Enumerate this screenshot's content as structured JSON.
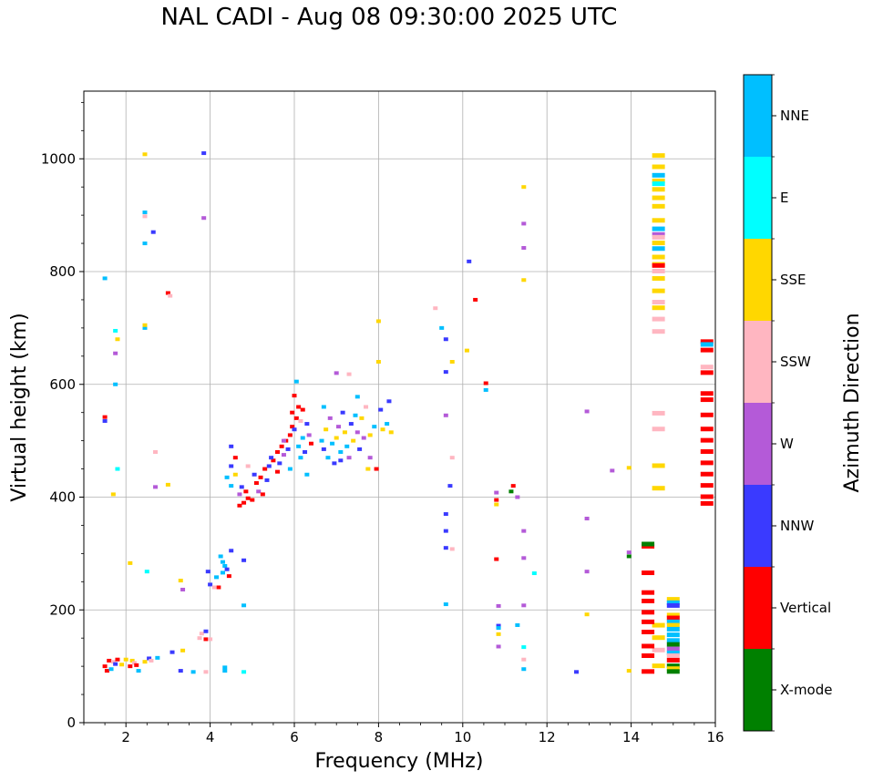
{
  "chart_data": {
    "type": "scatter",
    "title": "NAL CADI - Aug 08 09:30:00 2025 UTC",
    "xlabel": "Frequency (MHz)",
    "ylabel": "Virtual height (km)",
    "xlim": [
      1,
      16
    ],
    "ylim": [
      0,
      1120
    ],
    "xticks": [
      2,
      4,
      6,
      8,
      10,
      12,
      14,
      16
    ],
    "yticks": [
      0,
      200,
      400,
      600,
      800,
      1000
    ],
    "grid": true,
    "colorbar": {
      "label": "Azimuth Direction",
      "categories": [
        {
          "name": "X-mode",
          "color": "#008000"
        },
        {
          "name": "Vertical",
          "color": "#ff0000"
        },
        {
          "name": "NNW",
          "color": "#3a3aff"
        },
        {
          "name": "W",
          "color": "#b45ad8"
        },
        {
          "name": "SSW",
          "color": "#ffb6c1"
        },
        {
          "name": "SSE",
          "color": "#ffd700"
        },
        {
          "name": "E",
          "color": "#00ffff"
        },
        {
          "name": "NNE",
          "color": "#00bfff"
        }
      ]
    },
    "points": [
      [
        "Vertical",
        1.5,
        100
      ],
      [
        "Vertical",
        1.55,
        92
      ],
      [
        "Vertical",
        1.6,
        110
      ],
      [
        "NNE",
        1.65,
        95
      ],
      [
        "SSW",
        1.7,
        108
      ],
      [
        "NNW",
        1.75,
        104
      ],
      [
        "Vertical",
        1.8,
        112
      ],
      [
        "SSE",
        1.9,
        103
      ],
      [
        "SSE",
        2.0,
        112
      ],
      [
        "Vertical",
        2.1,
        100
      ],
      [
        "SSE",
        2.15,
        110
      ],
      [
        "SSW",
        2.2,
        106
      ],
      [
        "Vertical",
        2.25,
        102
      ],
      [
        "NNE",
        2.3,
        92
      ],
      [
        "SSE",
        2.45,
        108
      ],
      [
        "NNW",
        2.55,
        114
      ],
      [
        "SSW",
        2.6,
        110
      ],
      [
        "NNE",
        2.75,
        115
      ],
      [
        "NNW",
        3.1,
        125
      ],
      [
        "NNW",
        3.3,
        92
      ],
      [
        "SSE",
        3.35,
        128
      ],
      [
        "NNE",
        3.6,
        90
      ],
      [
        "SSW",
        3.75,
        150
      ],
      [
        "SSW",
        3.8,
        158
      ],
      [
        "NNW",
        3.9,
        162
      ],
      [
        "Vertical",
        3.9,
        148
      ],
      [
        "SSW",
        4.0,
        148
      ],
      [
        "SSW",
        3.9,
        90
      ],
      [
        "NNE",
        4.35,
        92
      ],
      [
        "NNE",
        4.35,
        98
      ],
      [
        "E",
        4.8,
        90
      ],
      [
        "NNW",
        4.0,
        245
      ],
      [
        "NNE",
        4.15,
        258
      ],
      [
        "Vertical",
        4.2,
        240
      ],
      [
        "NNE",
        4.3,
        266
      ],
      [
        "NNE",
        4.35,
        278
      ],
      [
        "NNW",
        4.4,
        272
      ],
      [
        "Vertical",
        4.45,
        260
      ],
      [
        "NNE",
        4.25,
        295
      ],
      [
        "NNW",
        4.5,
        305
      ],
      [
        "NNE",
        4.8,
        208
      ],
      [
        "NNW",
        4.8,
        288
      ],
      [
        "SSW",
        4.1,
        240
      ],
      [
        "NNE",
        4.3,
        285
      ],
      [
        "Vertical",
        4.7,
        385
      ],
      [
        "Vertical",
        4.8,
        390
      ],
      [
        "Vertical",
        4.9,
        398
      ],
      [
        "Vertical",
        5.0,
        395
      ],
      [
        "Vertical",
        4.85,
        410
      ],
      [
        "W",
        4.7,
        405
      ],
      [
        "NNW",
        4.75,
        418
      ],
      [
        "Vertical",
        5.1,
        425
      ],
      [
        "Vertical",
        5.2,
        435
      ],
      [
        "NNW",
        5.05,
        440
      ],
      [
        "W",
        5.15,
        410
      ],
      [
        "Vertical",
        5.3,
        450
      ],
      [
        "NNW",
        5.4,
        455
      ],
      [
        "Vertical",
        5.5,
        465
      ],
      [
        "NNW",
        5.45,
        470
      ],
      [
        "Vertical",
        5.6,
        480
      ],
      [
        "NNW",
        5.65,
        460
      ],
      [
        "Vertical",
        5.7,
        490
      ],
      [
        "W",
        5.75,
        475
      ],
      [
        "Vertical",
        5.8,
        500
      ],
      [
        "NNW",
        5.85,
        485
      ],
      [
        "Vertical",
        5.9,
        510
      ],
      [
        "Vertical",
        5.95,
        525
      ],
      [
        "NNW",
        6.0,
        520
      ],
      [
        "Vertical",
        6.05,
        540
      ],
      [
        "Vertical",
        5.95,
        550
      ],
      [
        "W",
        5.75,
        500
      ],
      [
        "NNE",
        6.1,
        490
      ],
      [
        "NNE",
        6.15,
        470
      ],
      [
        "NNE",
        6.2,
        505
      ],
      [
        "NNW",
        6.25,
        480
      ],
      [
        "NNE",
        6.3,
        440
      ],
      [
        "W",
        6.35,
        510
      ],
      [
        "Vertical",
        6.4,
        495
      ],
      [
        "NNE",
        4.5,
        420
      ],
      [
        "NNE",
        4.4,
        435
      ],
      [
        "SSE",
        4.6,
        440
      ],
      [
        "NNW",
        4.5,
        455
      ],
      [
        "Vertical",
        4.6,
        470
      ],
      [
        "NNW",
        4.5,
        490
      ],
      [
        "SSW",
        4.9,
        455
      ],
      [
        "Vertical",
        5.25,
        405
      ],
      [
        "NNW",
        5.35,
        430
      ],
      [
        "Vertical",
        5.6,
        445
      ],
      [
        "NNE",
        5.9,
        450
      ],
      [
        "Vertical",
        6.1,
        560
      ],
      [
        "Vertical",
        6.0,
        580
      ],
      [
        "NNE",
        6.05,
        605
      ],
      [
        "SSW",
        6.15,
        535
      ],
      [
        "Vertical",
        6.2,
        555
      ],
      [
        "NNW",
        6.3,
        530
      ],
      [
        "NNE",
        6.65,
        500
      ],
      [
        "NNW",
        6.7,
        485
      ],
      [
        "SSE",
        6.75,
        520
      ],
      [
        "NNE",
        6.8,
        470
      ],
      [
        "W",
        6.85,
        540
      ],
      [
        "NNE",
        6.9,
        495
      ],
      [
        "NNW",
        6.95,
        460
      ],
      [
        "SSE",
        7.0,
        505
      ],
      [
        "W",
        7.05,
        525
      ],
      [
        "NNE",
        7.1,
        480
      ],
      [
        "NNW",
        7.15,
        550
      ],
      [
        "SSE",
        7.2,
        515
      ],
      [
        "NNE",
        7.25,
        490
      ],
      [
        "W",
        7.3,
        470
      ],
      [
        "NNW",
        7.35,
        530
      ],
      [
        "SSE",
        7.4,
        500
      ],
      [
        "NNE",
        7.45,
        545
      ],
      [
        "W",
        7.5,
        515
      ],
      [
        "NNW",
        7.55,
        485
      ],
      [
        "SSE",
        7.6,
        540
      ],
      [
        "W",
        7.65,
        505
      ],
      [
        "SSW",
        7.7,
        560
      ],
      [
        "SSE",
        7.8,
        510
      ],
      [
        "NNE",
        7.9,
        525
      ],
      [
        "NNW",
        8.05,
        555
      ],
      [
        "SSE",
        8.1,
        520
      ],
      [
        "NNE",
        8.2,
        530
      ],
      [
        "NNW",
        8.25,
        570
      ],
      [
        "SSE",
        8.3,
        515
      ],
      [
        "SSE",
        7.75,
        450
      ],
      [
        "Vertical",
        7.95,
        450
      ],
      [
        "NNW",
        7.1,
        465
      ],
      [
        "W",
        7.8,
        470
      ],
      [
        "NNE",
        6.7,
        560
      ],
      [
        "NNE",
        7.5,
        578
      ],
      [
        "W",
        7.0,
        620
      ],
      [
        "SSW",
        7.3,
        618
      ],
      [
        "SSE",
        8.0,
        640
      ],
      [
        "SSE",
        8.0,
        712
      ],
      [
        "NNW",
        1.5,
        535
      ],
      [
        "Vertical",
        1.5,
        542
      ],
      [
        "NNE",
        1.75,
        600
      ],
      [
        "W",
        1.75,
        655
      ],
      [
        "E",
        1.75,
        695
      ],
      [
        "SSE",
        1.8,
        680
      ],
      [
        "E",
        1.8,
        450
      ],
      [
        "SSE",
        1.7,
        405
      ],
      [
        "NNE",
        1.5,
        788
      ],
      [
        "SSE",
        2.1,
        283
      ],
      [
        "E",
        2.5,
        268
      ],
      [
        "SSW",
        2.7,
        480
      ],
      [
        "W",
        2.7,
        418
      ],
      [
        "SSE",
        3.0,
        422
      ],
      [
        "Vertical",
        3.0,
        762
      ],
      [
        "SSW",
        3.05,
        757
      ],
      [
        "NNE",
        2.45,
        700
      ],
      [
        "SSE",
        2.45,
        705
      ],
      [
        "NNE",
        2.45,
        850
      ],
      [
        "NNE",
        2.45,
        905
      ],
      [
        "SSW",
        2.45,
        898
      ],
      [
        "SSE",
        2.45,
        1008
      ],
      [
        "NNW",
        2.65,
        870
      ],
      [
        "NNW",
        3.85,
        1010
      ],
      [
        "W",
        3.85,
        895
      ],
      [
        "SSE",
        3.3,
        252
      ],
      [
        "W",
        3.35,
        236
      ],
      [
        "NNW",
        3.95,
        268
      ],
      [
        "SSW",
        9.35,
        735
      ],
      [
        "NNE",
        9.5,
        700
      ],
      [
        "NNW",
        9.6,
        680
      ],
      [
        "NNW",
        9.6,
        622
      ],
      [
        "W",
        9.6,
        545
      ],
      [
        "SSE",
        9.75,
        640
      ],
      [
        "NNW",
        9.7,
        420
      ],
      [
        "SSW",
        9.75,
        470
      ],
      [
        "NNW",
        9.6,
        370
      ],
      [
        "NNW",
        9.6,
        340
      ],
      [
        "NNW",
        9.6,
        310
      ],
      [
        "SSW",
        9.75,
        308
      ],
      [
        "NNE",
        9.6,
        210
      ],
      [
        "NNW",
        10.15,
        818
      ],
      [
        "SSE",
        10.1,
        660
      ],
      [
        "Vertical",
        10.3,
        750
      ],
      [
        "Vertical",
        10.55,
        602
      ],
      [
        "NNE",
        10.55,
        590
      ],
      [
        "W",
        10.8,
        408
      ],
      [
        "SSE",
        10.8,
        387
      ],
      [
        "Vertical",
        10.8,
        395
      ],
      [
        "Vertical",
        11.2,
        420
      ],
      [
        "X-mode",
        11.15,
        410
      ],
      [
        "W",
        11.3,
        400
      ],
      [
        "Vertical",
        10.8,
        290
      ],
      [
        "NNW",
        10.85,
        172
      ],
      [
        "NNE",
        10.85,
        168
      ],
      [
        "SSE",
        10.85,
        157
      ],
      [
        "W",
        10.85,
        207
      ],
      [
        "W",
        10.85,
        135
      ],
      [
        "NNE",
        11.3,
        173
      ],
      [
        "W",
        11.45,
        885
      ],
      [
        "W",
        11.45,
        842
      ],
      [
        "SSE",
        11.45,
        950
      ],
      [
        "SSE",
        11.45,
        785
      ],
      [
        "W",
        11.45,
        340
      ],
      [
        "W",
        11.45,
        292
      ],
      [
        "W",
        11.45,
        208
      ],
      [
        "E",
        11.45,
        134
      ],
      [
        "SSW",
        11.45,
        112
      ],
      [
        "NNE",
        11.45,
        95
      ],
      [
        "E",
        11.7,
        265
      ],
      [
        "NNW",
        12.7,
        90
      ],
      [
        "W",
        12.95,
        552
      ],
      [
        "W",
        12.95,
        362
      ],
      [
        "W",
        12.95,
        268
      ],
      [
        "SSE",
        12.95,
        192
      ],
      [
        "W",
        13.55,
        447
      ],
      [
        "SSE",
        13.95,
        452
      ],
      [
        "W",
        13.95,
        302
      ],
      [
        "X-mode",
        13.95,
        295
      ],
      [
        "SSE",
        13.95,
        92
      ]
    ],
    "columns": [
      {
        "x": 14.65,
        "segments": [
          [
            "SSE",
            1005
          ],
          [
            "SSE",
            985
          ],
          [
            "NNE",
            970
          ],
          [
            "SSE",
            960
          ],
          [
            "E",
            955
          ],
          [
            "SSE",
            945
          ],
          [
            "SSE",
            930
          ],
          [
            "SSE",
            915
          ],
          [
            "SSE",
            890
          ],
          [
            "NNE",
            875
          ],
          [
            "W",
            865
          ],
          [
            "SSW",
            860
          ],
          [
            "SSE",
            850
          ],
          [
            "NNE",
            840
          ],
          [
            "SSE",
            825
          ],
          [
            "SSE",
            812
          ],
          [
            "Vertical",
            810
          ],
          [
            "SSW",
            800
          ],
          [
            "SSE",
            787
          ],
          [
            "SSE",
            765
          ],
          [
            "SSW",
            745
          ],
          [
            "SSE",
            735
          ],
          [
            "SSW",
            715
          ],
          [
            "SSW",
            693
          ],
          [
            "SSW",
            548
          ],
          [
            "SSW",
            520
          ],
          [
            "SSE",
            455
          ],
          [
            "SSE",
            415
          ],
          [
            "SSE",
            172
          ],
          [
            "SSE",
            150
          ],
          [
            "SSW",
            128
          ],
          [
            "SSE",
            100
          ]
        ]
      },
      {
        "x": 14.4,
        "segments": [
          [
            "Vertical",
            312
          ],
          [
            "X-mode",
            316
          ],
          [
            "Vertical",
            265
          ],
          [
            "Vertical",
            230
          ],
          [
            "Vertical",
            215
          ],
          [
            "Vertical",
            195
          ],
          [
            "Vertical",
            178
          ],
          [
            "Vertical",
            160
          ],
          [
            "Vertical",
            135
          ],
          [
            "Vertical",
            118
          ],
          [
            "Vertical",
            90
          ]
        ]
      },
      {
        "x": 15.0,
        "segments": [
          [
            "SSE",
            218
          ],
          [
            "NNE",
            212
          ],
          [
            "NNW",
            207
          ],
          [
            "SSE",
            190
          ],
          [
            "Vertical",
            185
          ],
          [
            "NNE",
            178
          ],
          [
            "SSE",
            172
          ],
          [
            "NNE",
            165
          ],
          [
            "NNE",
            155
          ],
          [
            "NNE",
            145
          ],
          [
            "X-mode",
            138
          ],
          [
            "W",
            130
          ],
          [
            "NNE",
            123
          ],
          [
            "SSW",
            118
          ],
          [
            "Vertical",
            110
          ],
          [
            "X-mode",
            100
          ],
          [
            "SSE",
            95
          ],
          [
            "X-mode",
            90
          ]
        ]
      },
      {
        "x": 15.8,
        "segments": [
          [
            "Vertical",
            675
          ],
          [
            "NNE",
            670
          ],
          [
            "Vertical",
            660
          ],
          [
            "SSW",
            630
          ],
          [
            "Vertical",
            620
          ],
          [
            "Vertical",
            583
          ],
          [
            "Vertical",
            572
          ],
          [
            "Vertical",
            545
          ],
          [
            "Vertical",
            520
          ],
          [
            "Vertical",
            500
          ],
          [
            "Vertical",
            480
          ],
          [
            "Vertical",
            460
          ],
          [
            "Vertical",
            440
          ],
          [
            "Vertical",
            420
          ],
          [
            "Vertical",
            400
          ],
          [
            "Vertical",
            388
          ]
        ]
      }
    ]
  }
}
